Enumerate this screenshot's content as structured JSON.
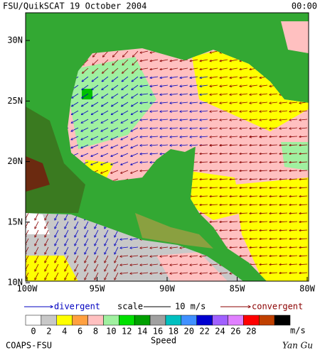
{
  "header": {
    "title": "FSU/QuikSCAT  19 October 2004",
    "time": "00:00"
  },
  "map": {
    "lat_labels": [
      "30N",
      "25N",
      "20N",
      "15N",
      "10N"
    ],
    "lon_labels": [
      "100W",
      "95W",
      "90W",
      "85W",
      "80W"
    ]
  },
  "legend": {
    "divergent": "divergent",
    "scale": "scale",
    "scale_value": "10 m/s",
    "convergent": "convergent"
  },
  "colorbar": {
    "labels": [
      "0",
      "2",
      "4",
      "6",
      "8",
      "10",
      "12",
      "14",
      "16",
      "18",
      "20",
      "22",
      "24",
      "26",
      "28"
    ],
    "colors": [
      "#ffffff",
      "#c8c8c8",
      "#ffff00",
      "#ffa040",
      "#ffc0c0",
      "#a0f0a0",
      "#00e000",
      "#00a000",
      "#a0a0a0",
      "#00c0c0",
      "#4090ff",
      "#0000d0",
      "#a060ff",
      "#e080ff",
      "#ff0000",
      "#c04000",
      "#000000"
    ],
    "unit": "m/s",
    "caption": "Speed"
  },
  "footer": {
    "credit": "COAPS-FSU",
    "author": "Yan Gu"
  }
}
